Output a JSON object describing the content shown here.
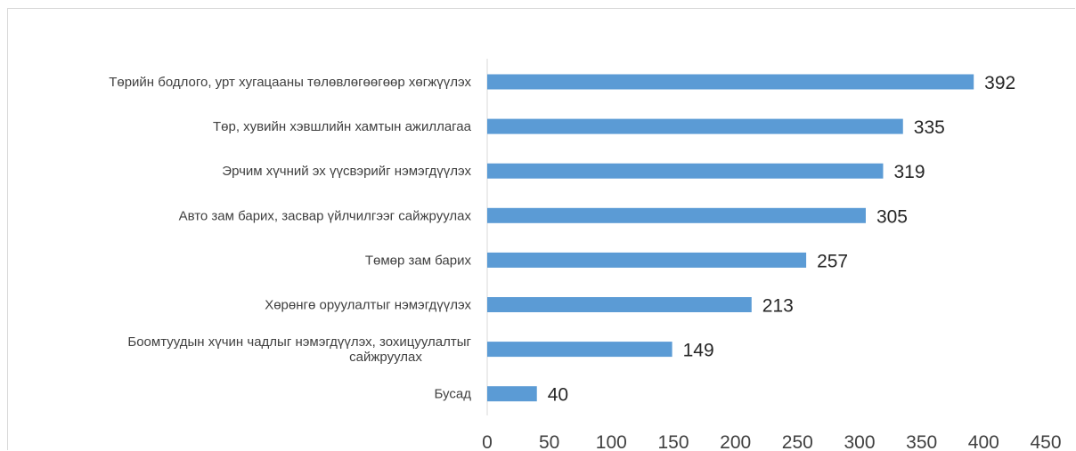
{
  "chart_data": {
    "type": "bar",
    "orientation": "horizontal",
    "title": "",
    "xlabel": "",
    "ylabel": "",
    "xlim": [
      0,
      450
    ],
    "xticks": [
      0,
      50,
      100,
      150,
      200,
      250,
      300,
      350,
      400,
      450
    ],
    "grid": false,
    "legend": "none",
    "bar_color": "#5b9bd5",
    "categories": [
      [
        "Төрийн бодлого, урт хугацааны төлөвлөгөөгөөр хөгжүүлэх"
      ],
      [
        "Төр, хувийн хэвшлийн хамтын ажиллагаа"
      ],
      [
        "Эрчим хүчний эх үүсвэрийг нэмэгдүүлэх"
      ],
      [
        "Авто зам барих, засвар үйлчилгээг сайжруулах"
      ],
      [
        "Төмөр зам барих"
      ],
      [
        "Хөрөнгө оруулалтыг нэмэгдүүлэх"
      ],
      [
        "Боомтуудын хүчин чадлыг нэмэгдүүлэх, зохицуулалтыг",
        "сайжруулах"
      ],
      [
        "Бусад"
      ]
    ],
    "values": [
      392,
      335,
      319,
      305,
      257,
      213,
      149,
      40
    ]
  }
}
